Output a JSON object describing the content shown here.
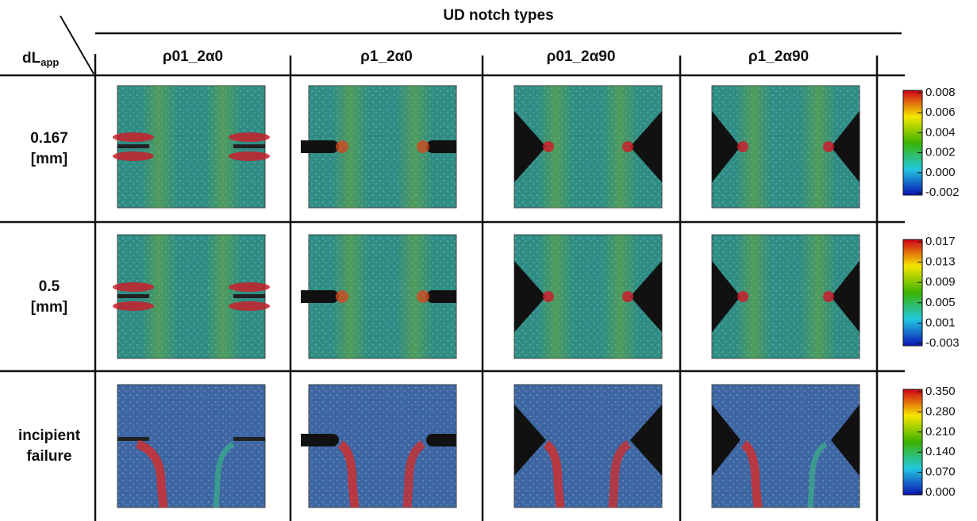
{
  "header": {
    "title": "UD notch types",
    "corner": {
      "main": "dL",
      "sub": "app"
    },
    "columns": [
      "ρ01_2α0",
      "ρ1_2α0",
      "ρ01_2α90",
      "ρ1_2α90"
    ]
  },
  "rows": [
    {
      "label": [
        "0.167",
        "[mm]"
      ],
      "colorbar": [
        "0.008",
        "0.006",
        "0.004",
        "0.002",
        "0.000",
        "-0.002"
      ]
    },
    {
      "label": [
        "0.5",
        "[mm]"
      ],
      "colorbar": [
        "0.017",
        "0.013",
        "0.009",
        "0.005",
        "0.001",
        "-0.003"
      ]
    },
    {
      "label": [
        "incipient",
        "failure"
      ],
      "colorbar": [
        "0.350",
        "0.280",
        "0.210",
        "0.140",
        "0.070",
        "0.000"
      ]
    }
  ]
}
